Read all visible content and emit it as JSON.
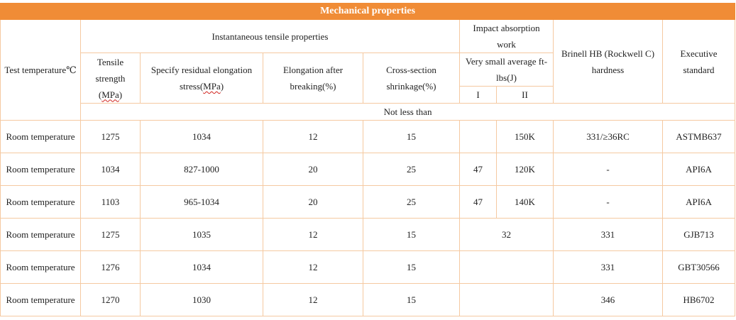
{
  "title": "Mechanical properties",
  "headers": {
    "test_temperature": "Test temperature℃",
    "instantaneous_tensile": "Instantaneous tensile properties",
    "impact_absorption": "Impact absorption work",
    "brinell": "Brinell HB (Rockwell C) hardness",
    "executive_standard": "Executive standard",
    "tensile_strength_a": "Tensile strength (",
    "tensile_strength_b": "MPa",
    "tensile_strength_c": ")",
    "residual_elongation_a": "Specify residual elongation stress(",
    "residual_elongation_b": "MPa",
    "residual_elongation_c": ")",
    "elongation": "Elongation after breaking(%)",
    "shrinkage": "Cross-section shrinkage(%)",
    "very_small_average": "Very small average ft-lbs(J)",
    "impact_i": "I",
    "impact_ii": "II",
    "not_less_than": "Not less than"
  },
  "rows": [
    {
      "temp": "Room temperature",
      "tensile": "1275",
      "residual": "1034",
      "elongation": "12",
      "shrinkage": "15",
      "impact_i": "",
      "impact_ii": "150K",
      "hardness": "331/≥36RC",
      "standard": "ASTMB637"
    },
    {
      "temp": "Room temperature",
      "tensile": "1034",
      "residual": "827-1000",
      "elongation": "20",
      "shrinkage": "25",
      "impact_i": "47",
      "impact_ii": "120K",
      "hardness": "-",
      "standard": "API6A"
    },
    {
      "temp": "Room temperature",
      "tensile": "1103",
      "residual": "965-1034",
      "elongation": "20",
      "shrinkage": "25",
      "impact_i": "47",
      "impact_ii": "140K",
      "hardness": "-",
      "standard": "API6A"
    },
    {
      "temp": "Room temperature",
      "tensile": "1275",
      "residual": "1035",
      "elongation": "12",
      "shrinkage": "15",
      "impact_merged": "32",
      "hardness": "331",
      "standard": "GJB713"
    },
    {
      "temp": "Room temperature",
      "tensile": "1276",
      "residual": "1034",
      "elongation": "12",
      "shrinkage": "15",
      "impact_merged": "",
      "hardness": "331",
      "standard": "GBT30566"
    },
    {
      "temp": "Room temperature",
      "tensile": "1270",
      "residual": "1030",
      "elongation": "12",
      "shrinkage": "15",
      "impact_merged": "",
      "hardness": "346",
      "standard": "HB6702"
    }
  ]
}
